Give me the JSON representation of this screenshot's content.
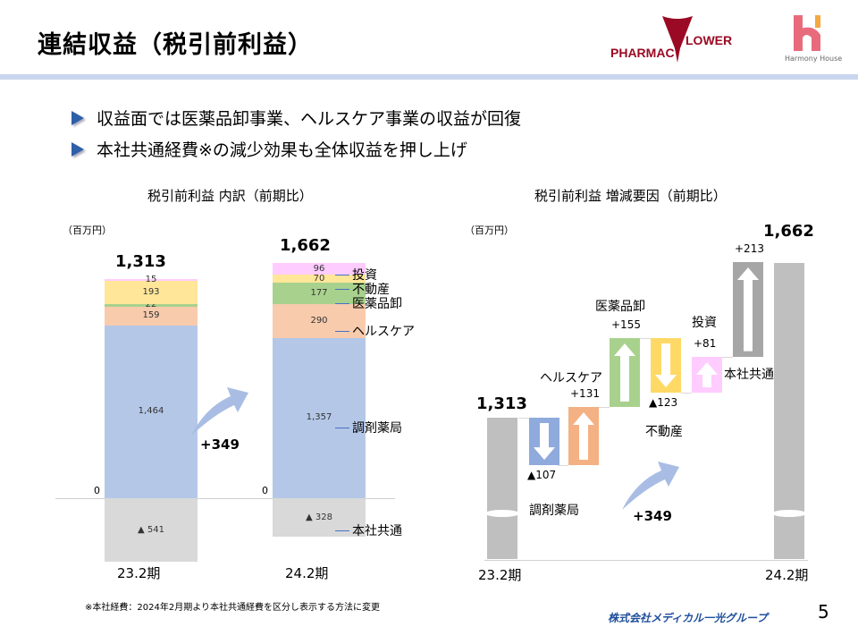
{
  "title": "連結収益（税引前利益）",
  "logos": {
    "pharmacy": "PHARMAC FLOWER",
    "harmony": "Harmony House",
    "group": "株式会社メディカル一光グループ"
  },
  "bullets": [
    "収益面では医薬品卸事業、ヘルスケア事業の収益が回復",
    "本社共通経費※の減少効果も全体収益を押し上げ"
  ],
  "footnote": "※本社経費：2024年2月期より本社共通経費を区分し表示する方法に変更",
  "page_number": "5",
  "chart_data": [
    {
      "type": "bar",
      "stacked": true,
      "title": "税引前利益 内訳（前期比）",
      "unit": "（百万円）",
      "categories": [
        "23.2期",
        "24.2期"
      ],
      "totals": [
        "1,313",
        "1,662"
      ],
      "zero_label": "0",
      "change_label": "+349",
      "series": [
        {
          "name": "調剤薬局",
          "values": [
            1464,
            1357
          ],
          "labels": [
            "1,464",
            "1,357"
          ],
          "color": "#b4c7e7"
        },
        {
          "name": "ヘルスケア",
          "values": [
            159,
            290
          ],
          "labels": [
            "159",
            "290"
          ],
          "color": "#f8cbad"
        },
        {
          "name": "医薬品卸",
          "values": [
            22,
            177
          ],
          "labels": [
            "22",
            "177"
          ],
          "color": "#a9d18e"
        },
        {
          "name": "不動産",
          "values": [
            193,
            70
          ],
          "labels": [
            "193",
            "70"
          ],
          "color": "#ffe699"
        },
        {
          "name": "投資",
          "values": [
            15,
            96
          ],
          "labels": [
            "15",
            "96"
          ],
          "color": "#ffccff"
        },
        {
          "name": "本社共通",
          "values": [
            -541,
            -328
          ],
          "labels": [
            "▲ 541",
            "▲ 328"
          ],
          "color": "#d9d9d9"
        }
      ]
    },
    {
      "type": "bar",
      "waterfall": true,
      "title": "税引前利益 増減要因（前期比）",
      "unit": "（百万円）",
      "start": {
        "label": "23.2期",
        "value": 1313,
        "text": "1,313"
      },
      "end": {
        "label": "24.2期",
        "value": 1662,
        "text": "1,662"
      },
      "change_label": "+349",
      "steps": [
        {
          "name": "調剤薬局",
          "value": -107,
          "text": "▲107",
          "color": "#8faadc"
        },
        {
          "name": "ヘルスケア",
          "value": 131,
          "text": "+131",
          "color": "#f4b183"
        },
        {
          "name": "医薬品卸",
          "value": 155,
          "text": "+155",
          "color": "#a9d18e"
        },
        {
          "name": "不動産",
          "value": -123,
          "text": "▲123",
          "color": "#ffd966"
        },
        {
          "name": "投資",
          "value": 81,
          "text": "+81",
          "color": "#ffccff"
        },
        {
          "name": "本社共通",
          "value": 213,
          "text": "+213",
          "color": "#a6a6a6"
        }
      ],
      "total_color": "#bfbfbf"
    }
  ]
}
